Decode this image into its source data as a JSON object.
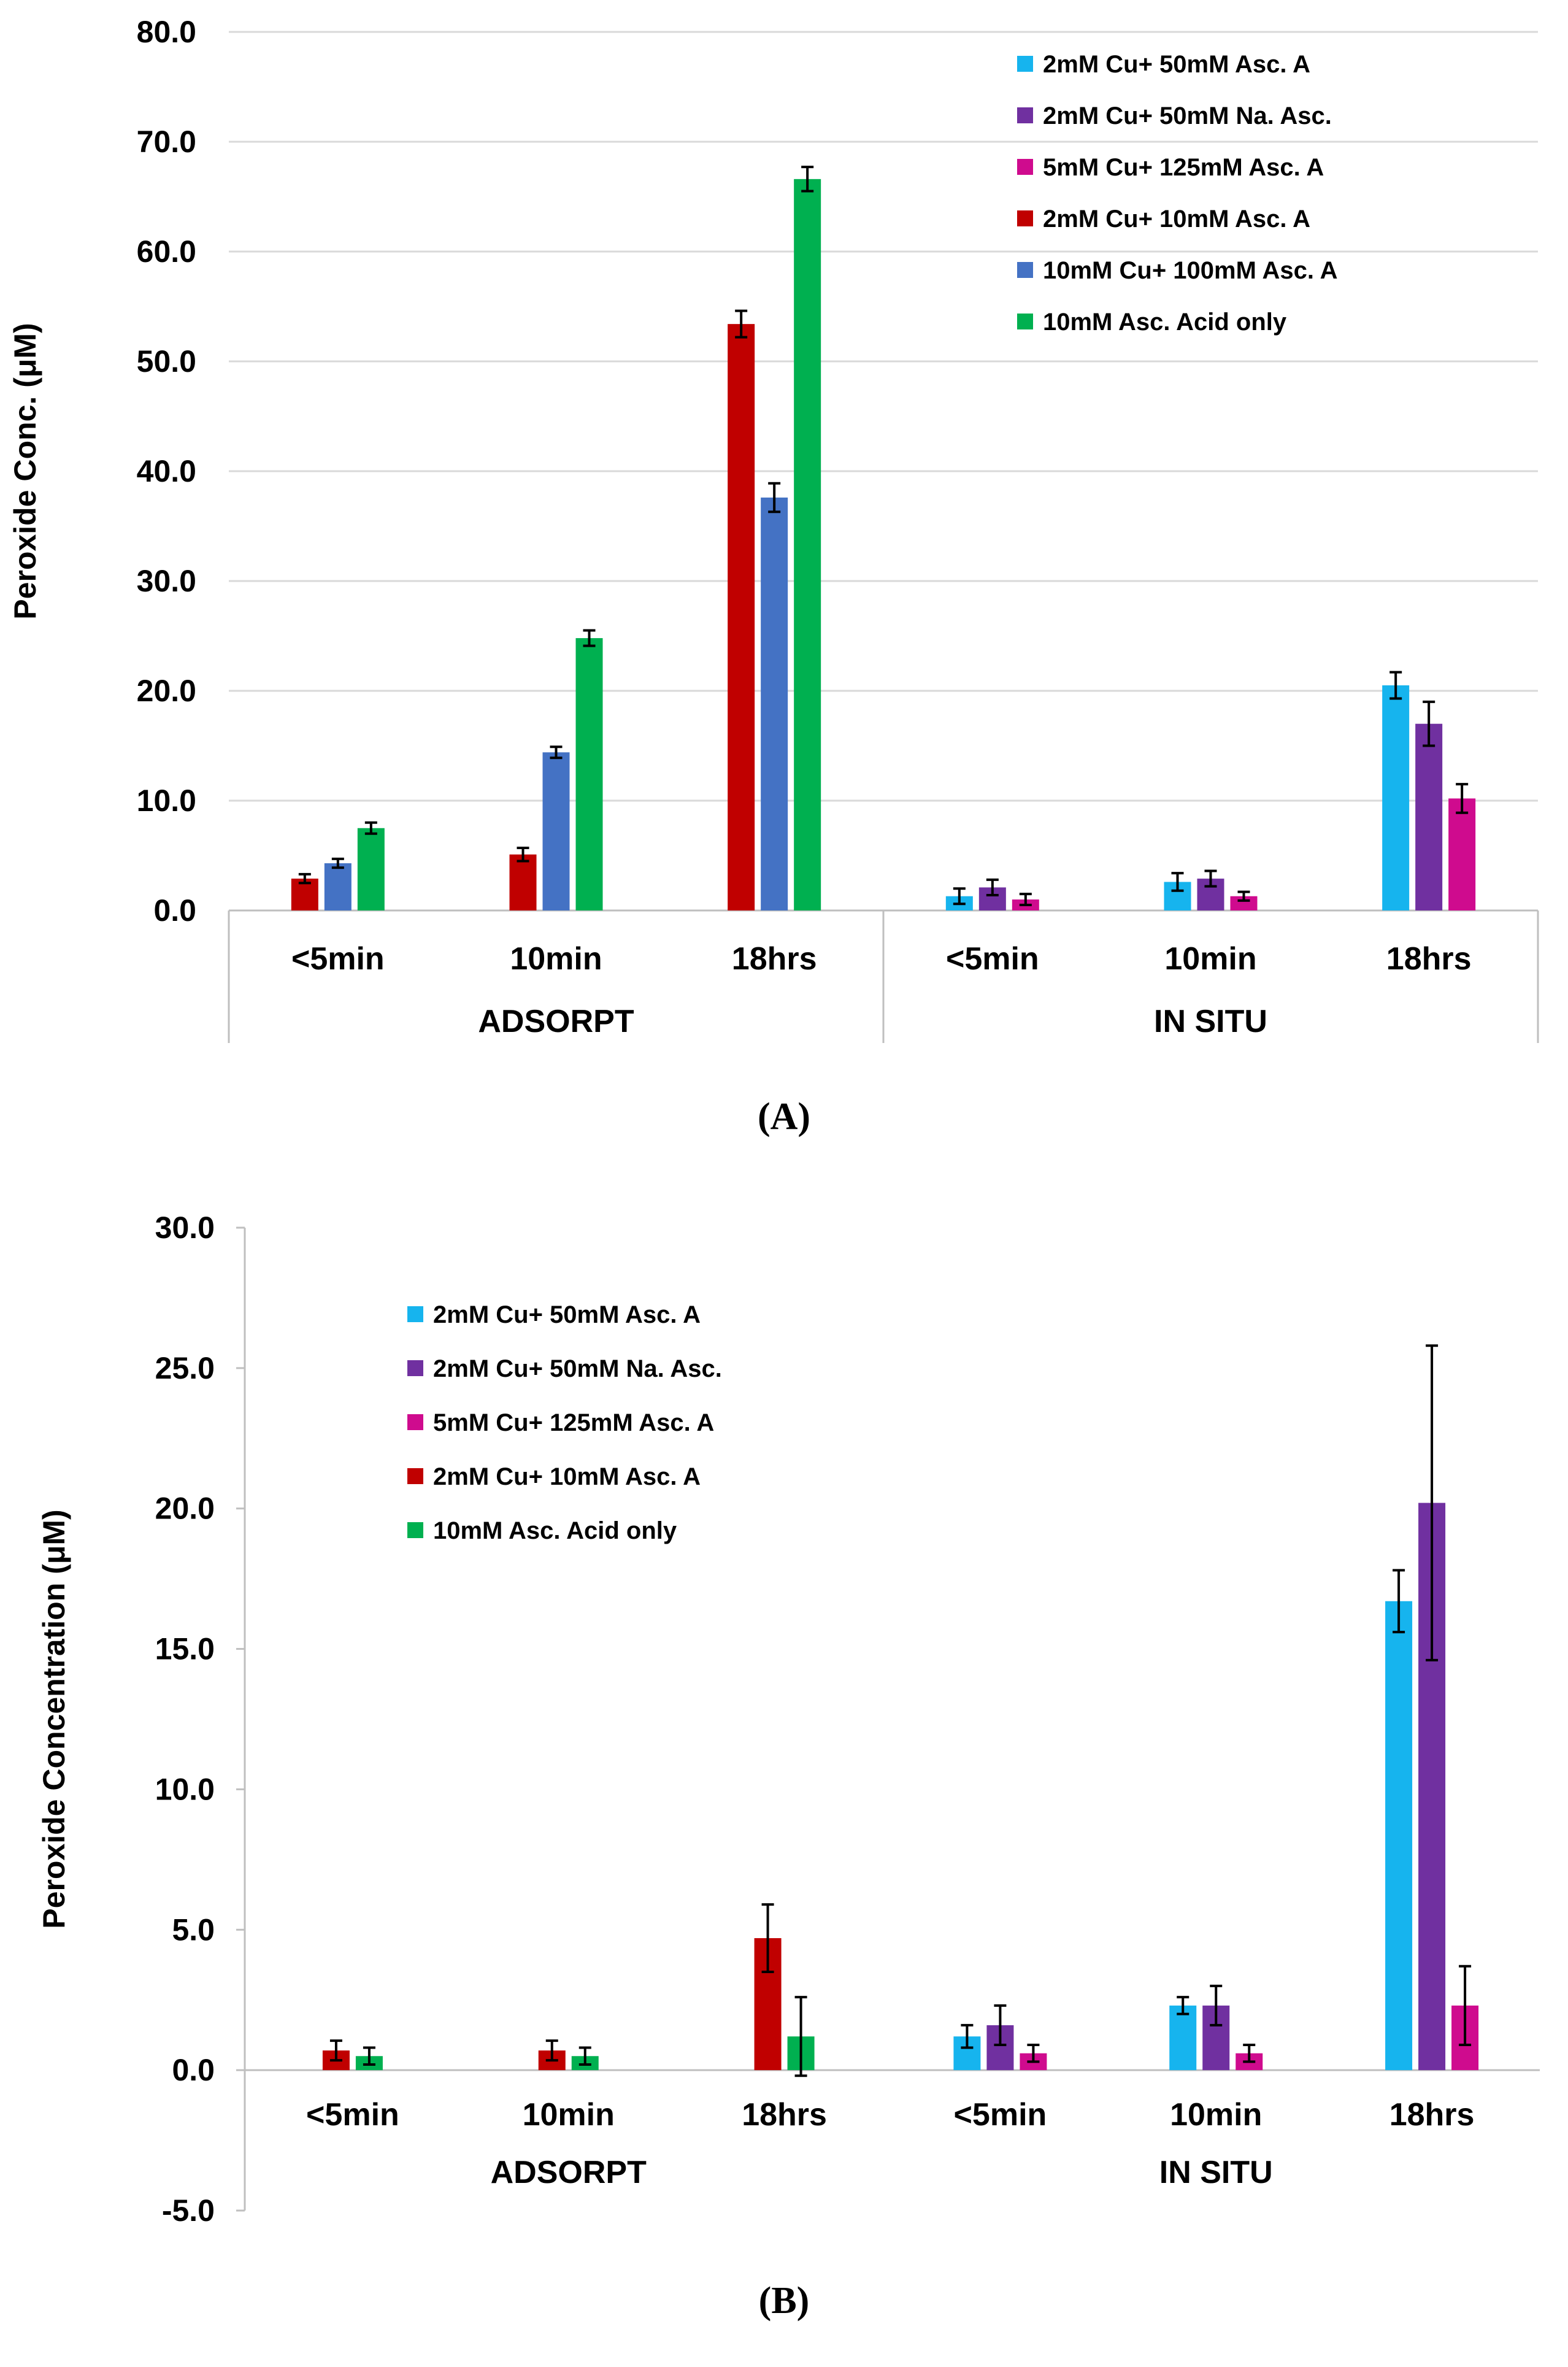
{
  "colors": {
    "cyan": "#16b4ee",
    "purple": "#7030a0",
    "magenta": "#cf0b8e",
    "red": "#c00000",
    "blue": "#4472c4",
    "green": "#00b050",
    "grid": "#d9d9d9",
    "axis": "#bfbfbf"
  },
  "panels": [
    {
      "panel_label": "(A)",
      "panel_letter": "A",
      "chart_data": {
        "type": "bar",
        "title": "",
        "ylabel": "Peroxide Conc. (μM)",
        "xlabel": "",
        "ylim": [
          0,
          80
        ],
        "ytick_step": 10,
        "ytick_labels": [
          "0.0",
          "10.0",
          "20.0",
          "30.0",
          "40.0",
          "50.0",
          "60.0",
          "70.0",
          "80.0"
        ],
        "grid": true,
        "legend_position": "top-right",
        "groups": [
          "ADSORPT",
          "IN SITU"
        ],
        "categories": [
          "<5min",
          "10min",
          "18hrs",
          "<5min",
          "10min",
          "18hrs"
        ],
        "series": [
          {
            "name": "2mM Cu+ 50mM Asc. A",
            "color_key": "cyan",
            "values": [
              null,
              null,
              null,
              1.3,
              2.6,
              20.5
            ],
            "errors": [
              null,
              null,
              null,
              0.7,
              0.8,
              1.2
            ]
          },
          {
            "name": "2mM Cu+ 50mM Na. Asc.",
            "color_key": "purple",
            "values": [
              null,
              null,
              null,
              2.1,
              2.9,
              17.0
            ],
            "errors": [
              null,
              null,
              null,
              0.7,
              0.7,
              2.0
            ]
          },
          {
            "name": "5mM Cu+ 125mM Asc. A",
            "color_key": "magenta",
            "values": [
              null,
              null,
              null,
              1.0,
              1.3,
              10.2
            ],
            "errors": [
              null,
              null,
              null,
              0.5,
              0.4,
              1.3
            ]
          },
          {
            "name": "2mM Cu+ 10mM Asc. A",
            "color_key": "red",
            "values": [
              2.9,
              5.1,
              53.4,
              null,
              null,
              null
            ],
            "errors": [
              0.4,
              0.6,
              1.2,
              null,
              null,
              null
            ]
          },
          {
            "name": "10mM Cu+ 100mM Asc. A",
            "color_key": "blue",
            "values": [
              4.3,
              14.4,
              37.6,
              null,
              null,
              null
            ],
            "errors": [
              0.4,
              0.5,
              1.3,
              null,
              null,
              null
            ]
          },
          {
            "name": "10mM Asc. Acid only",
            "color_key": "green",
            "values": [
              7.5,
              24.8,
              66.6,
              null,
              null,
              null
            ],
            "errors": [
              0.5,
              0.7,
              1.1,
              null,
              null,
              null
            ]
          }
        ]
      }
    },
    {
      "panel_label": "(B)",
      "panel_letter": "B",
      "chart_data": {
        "type": "bar",
        "title": "",
        "ylabel": "Peroxide Concentration (μM)",
        "xlabel": "",
        "ylim": [
          -5,
          30
        ],
        "ytick_step": 5,
        "ytick_labels": [
          "-5.0",
          "0.0",
          "5.0",
          "10.0",
          "15.0",
          "20.0",
          "25.0",
          "30.0"
        ],
        "grid": false,
        "legend_position": "top-left",
        "groups": [
          "ADSORPT",
          "IN SITU"
        ],
        "categories": [
          "<5min",
          "10min",
          "18hrs",
          "<5min",
          "10min",
          "18hrs"
        ],
        "series": [
          {
            "name": "2mM Cu+ 50mM Asc. A",
            "color_key": "cyan",
            "values": [
              null,
              null,
              null,
              1.2,
              2.3,
              16.7
            ],
            "errors": [
              null,
              null,
              null,
              0.4,
              0.3,
              1.1
            ]
          },
          {
            "name": "2mM Cu+ 50mM Na. Asc.",
            "color_key": "purple",
            "values": [
              null,
              null,
              null,
              1.6,
              2.3,
              20.2
            ],
            "errors": [
              null,
              null,
              null,
              0.7,
              0.7,
              5.6
            ]
          },
          {
            "name": "5mM Cu+ 125mM Asc. A",
            "color_key": "magenta",
            "values": [
              null,
              null,
              null,
              0.6,
              0.6,
              2.3
            ],
            "errors": [
              null,
              null,
              null,
              0.3,
              0.3,
              1.4
            ]
          },
          {
            "name": "2mM Cu+ 10mM Asc. A",
            "color_key": "red",
            "values": [
              0.7,
              0.7,
              4.7,
              null,
              null,
              null
            ],
            "errors": [
              0.35,
              0.35,
              1.2,
              null,
              null,
              null
            ]
          },
          {
            "name": "10mM Asc. Acid only",
            "color_key": "green",
            "values": [
              0.5,
              0.5,
              1.2,
              null,
              null,
              null
            ],
            "errors": [
              0.3,
              0.3,
              1.4,
              null,
              null,
              null
            ]
          }
        ]
      }
    }
  ]
}
